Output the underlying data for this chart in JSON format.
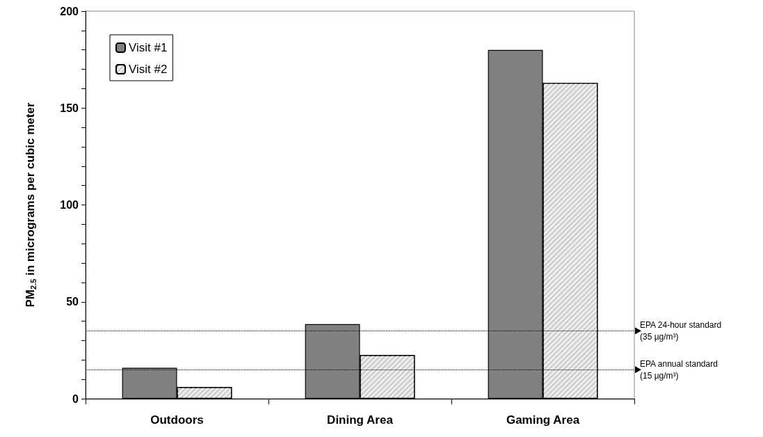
{
  "chart_data": {
    "type": "bar",
    "ylabel": "PM$_{2.5}$ in micrograms per cubic meter",
    "categories": [
      "Outdoors",
      "Dining Area",
      "Gaming Area"
    ],
    "series": [
      {
        "name": "Visit #1",
        "color": "#808080",
        "values": [
          16,
          38.5,
          180
        ]
      },
      {
        "name": "Visit #2",
        "color": "#d0d0d0",
        "values": [
          6,
          22.5,
          163
        ]
      }
    ],
    "ylim": [
      0,
      200
    ],
    "yticks": [
      0,
      {
        "value": 10,
        "label": null
      },
      {
        "value": 20,
        "label": null
      },
      {
        "value": 30,
        "label": null
      },
      {
        "value": 40,
        "label": null
      },
      50,
      {
        "value": 60,
        "label": null
      },
      {
        "value": 70,
        "label": null
      },
      {
        "value": 80,
        "label": null
      },
      {
        "value": 90,
        "label": null
      },
      100,
      {
        "value": 110,
        "label": null
      },
      {
        "value": 120,
        "label": null
      },
      {
        "value": 130,
        "label": null
      },
      {
        "value": 140,
        "label": null
      },
      150,
      {
        "value": 160,
        "label": null
      },
      {
        "value": 170,
        "label": null
      },
      {
        "value": 180,
        "label": null
      },
      {
        "value": 190,
        "label": null
      },
      200
    ],
    "ref_lines": [
      {
        "axis": "y",
        "value": 35,
        "label": "EPA 24-hour standard (35 µg/m³)",
        "color": "#000000",
        "line_style": "dotted"
      },
      {
        "axis": "y",
        "value": 15,
        "label": "EPA annual standard (15 µg/m³)",
        "color": "#000000",
        "line_style": "dotted"
      }
    ],
    "grid": false,
    "legend": "top left"
  }
}
